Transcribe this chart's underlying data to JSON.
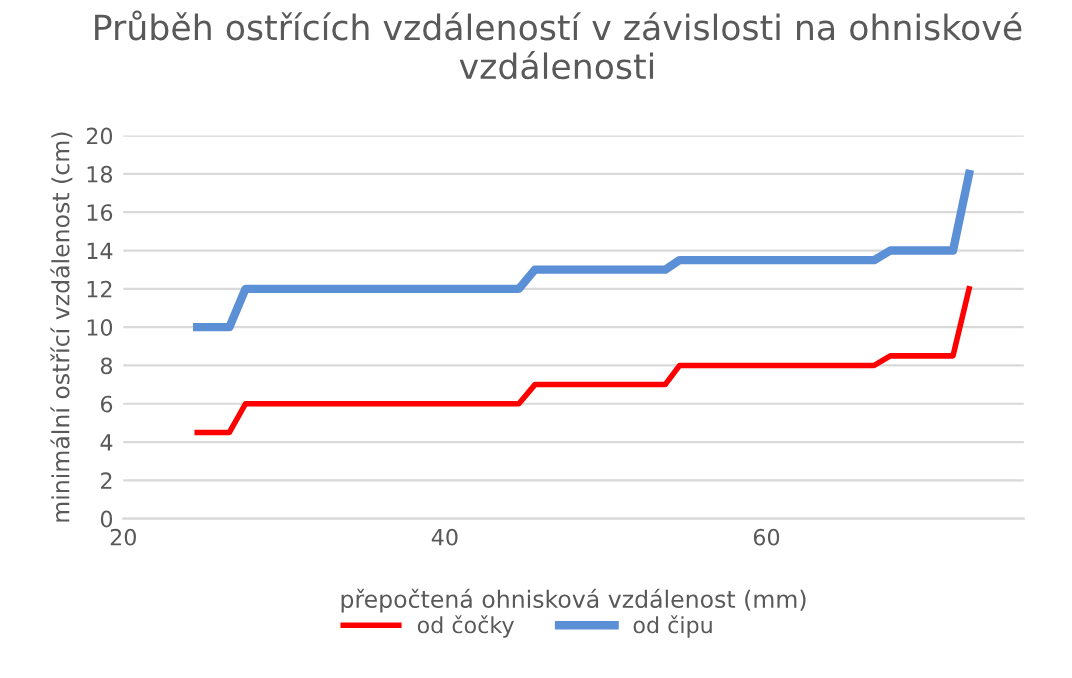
{
  "chart_data": {
    "type": "line",
    "title": "Průběh ostřících vzdáleností v závislosti na ohniskové vzdálenosti",
    "xlabel": "přepočtená ohnisková vzdálenost (mm)",
    "ylabel": "minimální ostřící vzdálenost (cm)",
    "x": [
      24.6,
      26.6,
      27.6,
      44.6,
      45.6,
      53.7,
      54.6,
      66.7,
      67.7,
      71.6,
      72.6
    ],
    "series": [
      {
        "name": "od čočky",
        "color": "#ff0000",
        "values": [
          4.5,
          4.5,
          6,
          6,
          7,
          7,
          8,
          8,
          8.5,
          8.5,
          12
        ]
      },
      {
        "name": "od čipu",
        "color": "#5b8fd6",
        "values": [
          10,
          10,
          12,
          12,
          13,
          13,
          13.5,
          13.5,
          14,
          14,
          18
        ]
      }
    ],
    "xlim": [
      20,
      76
    ],
    "xticks": [
      20,
      40,
      60
    ],
    "ylim": [
      0,
      20
    ],
    "yticks": [
      0,
      2,
      4,
      6,
      8,
      10,
      12,
      14,
      16,
      18,
      20
    ],
    "grid": "y",
    "legend": "bottom",
    "marker": "none",
    "line_style": "solid"
  }
}
